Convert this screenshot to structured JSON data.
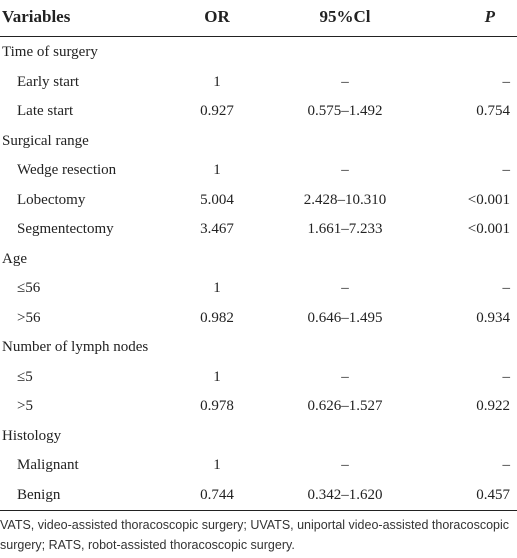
{
  "table": {
    "header": [
      "Variables",
      "OR",
      "95%Cl",
      "P"
    ],
    "rows": [
      {
        "label": "Time of surgery"
      },
      {
        "label": "Early start",
        "or": "1",
        "ci": "–",
        "p": "–"
      },
      {
        "label": "Late start",
        "or": "0.927",
        "ci": "0.575–1.492",
        "p": "0.754"
      },
      {
        "label": "Surgical range"
      },
      {
        "label": "Wedge resection",
        "or": "1",
        "ci": "–",
        "p": "–"
      },
      {
        "label": "Lobectomy",
        "or": "5.004",
        "ci": "2.428–10.310",
        "p": "<0.001"
      },
      {
        "label": "Segmentectomy",
        "or": "3.467",
        "ci": "1.661–7.233",
        "p": "<0.001"
      },
      {
        "label": "Age"
      },
      {
        "label": "≤56",
        "or": "1",
        "ci": "–",
        "p": "–"
      },
      {
        "label": ">56",
        "or": "0.982",
        "ci": "0.646–1.495",
        "p": "0.934"
      },
      {
        "label": "Number of lymph nodes"
      },
      {
        "label": "≤5",
        "or": "1",
        "ci": "–",
        "p": "–"
      },
      {
        "label": ">5",
        "or": "0.978",
        "ci": "0.626–1.527",
        "p": "0.922"
      },
      {
        "label": "Histology"
      },
      {
        "label": "Malignant",
        "or": "1",
        "ci": "–",
        "p": "–"
      },
      {
        "label": "Benign",
        "or": "0.744",
        "ci": "0.342–1.620",
        "p": "0.457"
      }
    ],
    "footnote": "VATS, video-assisted thoracoscopic surgery; UVATS, uniportal video-assisted thoracoscopic surgery; RATS, robot-assisted thoracoscopic surgery."
  }
}
